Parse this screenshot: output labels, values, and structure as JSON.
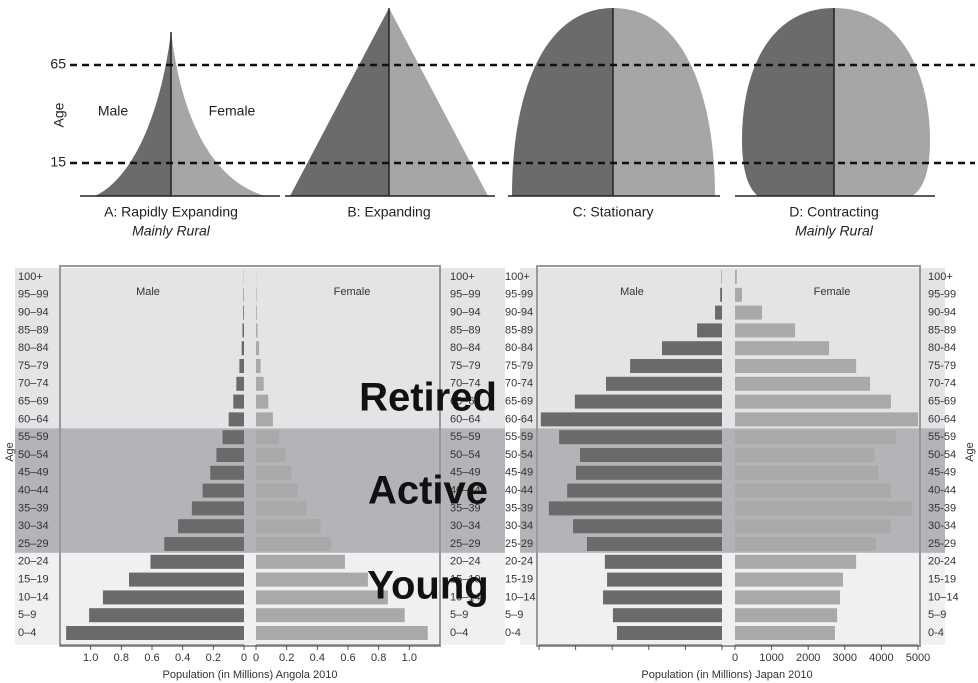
{
  "schematic": {
    "axis_label": "Age",
    "ticks": [
      65,
      15
    ],
    "male": "Male",
    "female": "Female",
    "shapes": [
      {
        "title": "A: Rapidly Expanding",
        "subtitle": "Mainly Rural"
      },
      {
        "title": "B: Expanding"
      },
      {
        "title": "C: Stationary"
      },
      {
        "title": "D: Contracting",
        "subtitle": "Mainly Rural"
      }
    ]
  },
  "bands": [
    "Retired",
    "Active",
    "Young"
  ],
  "chart_data": [
    {
      "type": "pyramid",
      "xlabel": "Population (in Millions) Angola 2010",
      "ylabel": "Age",
      "categories": [
        "0–4",
        "5–9",
        "10–14",
        "15–19",
        "20–24",
        "25–29",
        "30–34",
        "35–39",
        "40–44",
        "45–49",
        "50–54",
        "55–59",
        "60–64",
        "65–69",
        "70–74",
        "75–79",
        "80–84",
        "85–89",
        "90–94",
        "95–99",
        "100+"
      ],
      "series": [
        {
          "name": "Male",
          "color": "#6a6a6a",
          "values": [
            1.16,
            1.01,
            0.92,
            0.75,
            0.61,
            0.52,
            0.43,
            0.34,
            0.27,
            0.22,
            0.18,
            0.14,
            0.1,
            0.07,
            0.05,
            0.03,
            0.015,
            0.01,
            0.005,
            0.003,
            0.001
          ]
        },
        {
          "name": "Female",
          "color": "#a9a9a9",
          "values": [
            1.12,
            0.97,
            0.86,
            0.73,
            0.58,
            0.49,
            0.42,
            0.33,
            0.27,
            0.23,
            0.19,
            0.15,
            0.11,
            0.08,
            0.05,
            0.03,
            0.02,
            0.01,
            0.005,
            0.003,
            0.001
          ]
        }
      ],
      "xlim": [
        0,
        1.2
      ],
      "xticks": [
        0,
        0.2,
        0.4,
        0.6,
        0.8,
        {
          "value": 1,
          "label": "1.0"
        }
      ],
      "tick_labels": "both"
    },
    {
      "type": "pyramid",
      "xlabel": "Population (in Millions) Japan 2010",
      "ylabel": "Age",
      "categories": [
        "0-4",
        "5–9",
        "10–14",
        "15-19",
        "20-24",
        "25-29",
        "30-34",
        "35-39",
        "40-44",
        "45-49",
        "50-54",
        "55-59",
        "60-64",
        "65-69",
        "70-74",
        "75-79",
        "80-84",
        "85-89",
        "90-94",
        "95-99",
        "100+"
      ],
      "series": [
        {
          "name": "Male",
          "color": "#6a6a6a",
          "values": [
            2870,
            2980,
            3250,
            3140,
            3200,
            3690,
            4070,
            4730,
            4230,
            3990,
            3880,
            4450,
            4950,
            4020,
            3170,
            2510,
            1640,
            680,
            190,
            50,
            10
          ]
        },
        {
          "name": "Female",
          "color": "#a9a9a9",
          "values": [
            2730,
            2790,
            2870,
            2950,
            3310,
            3850,
            4260,
            4840,
            4260,
            3910,
            3800,
            4400,
            5000,
            4260,
            3690,
            3310,
            2570,
            1640,
            740,
            190,
            50
          ]
        }
      ],
      "xlim": [
        0,
        5000
      ],
      "xticks": [
        0,
        1000,
        2000,
        3000,
        4000,
        5000
      ],
      "tick_labels": "right"
    }
  ]
}
